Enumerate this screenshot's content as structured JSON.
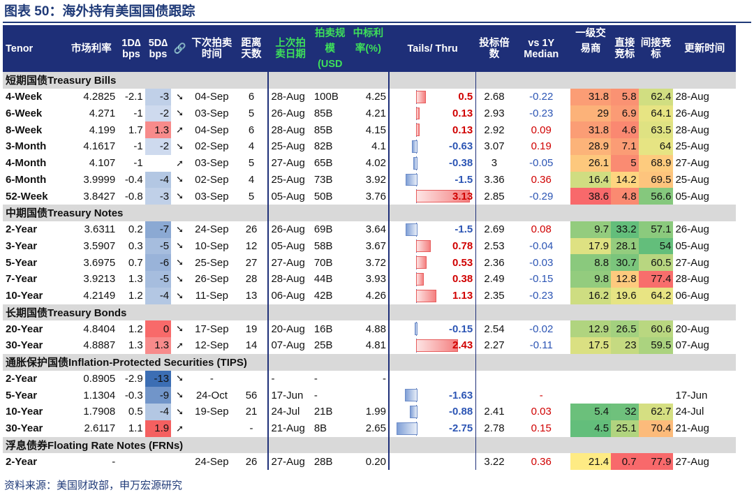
{
  "title": "图表 50：海外持有美国国债跟踪",
  "source": "资料来源：美国财政部，申万宏源研究",
  "headers": {
    "tenor": "Tenor",
    "rate": "市场利率",
    "d1": "1D∆ bps",
    "d5": "5D∆ bps",
    "link": "🔗",
    "next_auction": "下次拍卖时间",
    "days": "距离天数",
    "last_auction": "上次拍卖日期",
    "size": "拍卖规模(USD",
    "winning": "中标利率(%)",
    "tails": "Tails/ Thru",
    "btc": "投标倍数",
    "vs1y": "vs 1Y Median",
    "primary": "一级交易商",
    "direct": "直接竞标",
    "indirect": "间接竞标",
    "updated": "更新时间"
  },
  "colors": {
    "header_bg": "#1e2f78",
    "section_bg": "#d9d9d9",
    "neg_text": "#2c55b4",
    "pos_text": "#d00000"
  },
  "sections": [
    {
      "label": "短期国债Treasury Bills",
      "rows": [
        {
          "tenor": "4-Week",
          "rate": "4.2825",
          "d1": "-2.1",
          "d5": "-3",
          "arrow": "➘",
          "next": "04-Sep",
          "days": "6",
          "last": "28-Aug",
          "size": "100B",
          "win": "4.25",
          "tails": "0.5",
          "btc": "2.68",
          "vs": "-0.22",
          "primary": "31.8",
          "direct": "5.8",
          "indirect": "62.4",
          "updated": "28-Aug"
        },
        {
          "tenor": "6-Week",
          "rate": "4.271",
          "d1": "-1",
          "d5": "-2",
          "arrow": "➘",
          "next": "03-Sep",
          "days": "5",
          "last": "26-Aug",
          "size": "85B",
          "win": "4.21",
          "tails": "0.13",
          "btc": "2.93",
          "vs": "-0.23",
          "primary": "29",
          "direct": "6.9",
          "indirect": "64.1",
          "updated": "26-Aug"
        },
        {
          "tenor": "8-Week",
          "rate": "4.199",
          "d1": "1.7",
          "d5": "1.3",
          "arrow": "➚",
          "next": "04-Sep",
          "days": "6",
          "last": "28-Aug",
          "size": "85B",
          "win": "4.15",
          "tails": "0.13",
          "btc": "2.92",
          "vs": "0.09",
          "primary": "31.8",
          "direct": "4.6",
          "indirect": "63.5",
          "updated": "28-Aug"
        },
        {
          "tenor": "3-Month",
          "rate": "4.1617",
          "d1": "-1",
          "d5": "-2",
          "arrow": "➘",
          "next": "02-Sep",
          "days": "4",
          "last": "25-Aug",
          "size": "82B",
          "win": "4.1",
          "tails": "-0.63",
          "btc": "3.07",
          "vs": "0.19",
          "primary": "28.9",
          "direct": "7.1",
          "indirect": "64",
          "updated": "25-Aug"
        },
        {
          "tenor": "4-Month",
          "rate": "4.107",
          "d1": "-1",
          "d5": "",
          "arrow": "➚",
          "next": "03-Sep",
          "days": "5",
          "last": "27-Aug",
          "size": "65B",
          "win": "4.02",
          "tails": "-0.38",
          "btc": "3",
          "vs": "-0.05",
          "primary": "26.1",
          "direct": "5",
          "indirect": "68.9",
          "updated": "27-Aug"
        },
        {
          "tenor": "6-Month",
          "rate": "3.9999",
          "d1": "-0.4",
          "d5": "-4",
          "arrow": "➘",
          "next": "02-Sep",
          "days": "4",
          "last": "25-Aug",
          "size": "73B",
          "win": "3.92",
          "tails": "-1.5",
          "btc": "3.36",
          "vs": "0.36",
          "primary": "16.4",
          "direct": "14.2",
          "indirect": "69.5",
          "updated": "25-Aug"
        },
        {
          "tenor": "52-Week",
          "rate": "3.8427",
          "d1": "-0.8",
          "d5": "-3",
          "arrow": "➘",
          "next": "03-Sep",
          "days": "5",
          "last": "05-Aug",
          "size": "50B",
          "win": "3.76",
          "tails": "3.13",
          "btc": "2.85",
          "vs": "-0.29",
          "primary": "38.6",
          "direct": "4.8",
          "indirect": "56.6",
          "updated": "05-Aug"
        }
      ]
    },
    {
      "label": "中期国债Treasury Notes",
      "rows": [
        {
          "tenor": "2-Year",
          "rate": "3.6311",
          "d1": "0.2",
          "d5": "-7",
          "arrow": "➘",
          "next": "24-Sep",
          "days": "26",
          "last": "26-Aug",
          "size": "69B",
          "win": "3.64",
          "tails": "-1.5",
          "btc": "2.69",
          "vs": "0.08",
          "primary": "9.7",
          "direct": "33.2",
          "indirect": "57.1",
          "updated": "26-Aug"
        },
        {
          "tenor": "3-Year",
          "rate": "3.5907",
          "d1": "0.3",
          "d5": "-5",
          "arrow": "➘",
          "next": "10-Sep",
          "days": "12",
          "last": "05-Aug",
          "size": "58B",
          "win": "3.67",
          "tails": "0.78",
          "btc": "2.53",
          "vs": "-0.04",
          "primary": "17.9",
          "direct": "28.1",
          "indirect": "54",
          "updated": "05-Aug"
        },
        {
          "tenor": "5-Year",
          "rate": "3.6975",
          "d1": "0.7",
          "d5": "-6",
          "arrow": "➘",
          "next": "25-Sep",
          "days": "27",
          "last": "27-Aug",
          "size": "70B",
          "win": "3.72",
          "tails": "0.53",
          "btc": "2.36",
          "vs": "-0.03",
          "primary": "8.8",
          "direct": "30.7",
          "indirect": "60.5",
          "updated": "27-Aug"
        },
        {
          "tenor": "7-Year",
          "rate": "3.9213",
          "d1": "1.3",
          "d5": "-5",
          "arrow": "➘",
          "next": "26-Sep",
          "days": "28",
          "last": "28-Aug",
          "size": "44B",
          "win": "3.93",
          "tails": "0.38",
          "btc": "2.49",
          "vs": "-0.15",
          "primary": "9.8",
          "direct": "12.8",
          "indirect": "77.4",
          "updated": "28-Aug"
        },
        {
          "tenor": "10-Year",
          "rate": "4.2149",
          "d1": "1.2",
          "d5": "-4",
          "arrow": "➘",
          "next": "11-Sep",
          "days": "13",
          "last": "06-Aug",
          "size": "42B",
          "win": "4.26",
          "tails": "1.13",
          "btc": "2.35",
          "vs": "-0.23",
          "primary": "16.2",
          "direct": "19.6",
          "indirect": "64.2",
          "updated": "06-Aug"
        }
      ]
    },
    {
      "label": "长期国债Treasury Bonds",
      "rows": [
        {
          "tenor": "20-Year",
          "rate": "4.8404",
          "d1": "1.2",
          "d5": "0",
          "arrow": "➘",
          "next": "17-Sep",
          "days": "19",
          "last": "20-Aug",
          "size": "16B",
          "win": "4.88",
          "tails": "-0.15",
          "btc": "2.54",
          "vs": "-0.02",
          "primary": "12.9",
          "direct": "26.5",
          "indirect": "60.6",
          "updated": "20-Aug"
        },
        {
          "tenor": "30-Year",
          "rate": "4.8887",
          "d1": "1.3",
          "d5": "1.3",
          "arrow": "➚",
          "next": "12-Sep",
          "days": "14",
          "last": "07-Aug",
          "size": "25B",
          "win": "4.81",
          "tails": "2.43",
          "btc": "2.27",
          "vs": "-0.11",
          "primary": "17.5",
          "direct": "23",
          "indirect": "59.5",
          "updated": "07-Aug"
        }
      ]
    },
    {
      "label": "通胀保护国债Inflation-Protected Securities (TIPS)",
      "rows": [
        {
          "tenor": "2-Year",
          "rate": "0.8905",
          "d1": "-2.9",
          "d5": "-13",
          "arrow": "➘",
          "next": "-",
          "days": "",
          "last": "-",
          "size": "-",
          "win": "-",
          "tails": "",
          "btc": "",
          "vs": "",
          "primary": "",
          "direct": "",
          "indirect": "",
          "updated": ""
        },
        {
          "tenor": "5-Year",
          "rate": "1.1304",
          "d1": "-0.3",
          "d5": "-9",
          "arrow": "➘",
          "next": "24-Oct",
          "days": "56",
          "last": "17-Jun",
          "size": "-",
          "win": "",
          "tails": "-1.63",
          "btc": "",
          "vs": "-",
          "primary": "",
          "direct": "",
          "indirect": "",
          "updated": "17-Jun"
        },
        {
          "tenor": "10-Year",
          "rate": "1.7908",
          "d1": "0.5",
          "d5": "-4",
          "arrow": "➘",
          "next": "19-Sep",
          "days": "21",
          "last": "24-Jul",
          "size": "21B",
          "win": "1.99",
          "tails": "-0.88",
          "btc": "2.41",
          "vs": "0.03",
          "primary": "5.4",
          "direct": "32",
          "indirect": "62.7",
          "updated": "24-Jul"
        },
        {
          "tenor": "30-Year",
          "rate": "2.6117",
          "d1": "1.1",
          "d5": "1.9",
          "arrow": "➚",
          "next": "",
          "days": "-",
          "last": "21-Aug",
          "size": "8B",
          "win": "2.65",
          "tails": "-2.75",
          "btc": "2.78",
          "vs": "0.15",
          "primary": "4.5",
          "direct": "25.1",
          "indirect": "70.4",
          "updated": "21-Aug"
        }
      ]
    },
    {
      "label": "浮息债券Floating Rate Notes (FRNs)",
      "rows": [
        {
          "tenor": "2-Year",
          "rate": "-",
          "d1": "",
          "d5": "",
          "arrow": "",
          "next": "24-Sep",
          "days": "26",
          "last": "27-Aug",
          "size": "28B",
          "win": "0.20",
          "tails": "",
          "btc": "3.22",
          "vs": "0.36",
          "primary": "21.4",
          "direct": "0.7",
          "indirect": "77.9",
          "updated": "27-Aug"
        }
      ]
    }
  ]
}
